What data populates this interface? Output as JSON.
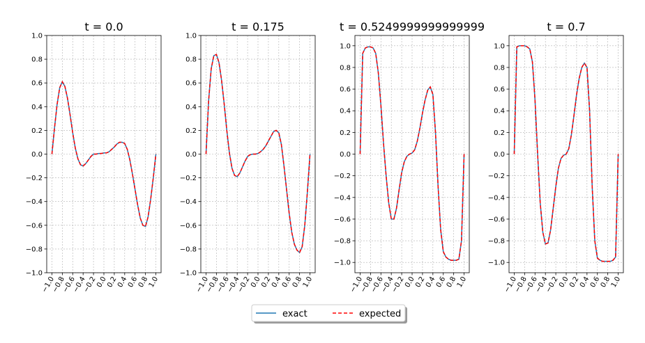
{
  "chart_data": [
    {
      "type": "line",
      "title": "t = 0.0",
      "x": [
        -1,
        -0.95,
        -0.9,
        -0.85,
        -0.8,
        -0.75,
        -0.7,
        -0.65,
        -0.6,
        -0.55,
        -0.5,
        -0.45,
        -0.4,
        -0.35,
        -0.3,
        -0.25,
        -0.2,
        -0.15,
        -0.1,
        -0.05,
        0,
        0.05,
        0.1,
        0.15,
        0.2,
        0.25,
        0.3,
        0.35,
        0.4,
        0.45,
        0.5,
        0.55,
        0.6,
        0.65,
        0.7,
        0.75,
        0.8,
        0.85,
        0.9,
        0.95,
        1
      ],
      "series": [
        {
          "name": "exact",
          "color": "#1f77b4",
          "dash": false,
          "values": [
            0,
            0.22,
            0.42,
            0.56,
            0.61,
            0.57,
            0.47,
            0.33,
            0.18,
            0.05,
            -0.04,
            -0.09,
            -0.1,
            -0.08,
            -0.05,
            -0.02,
            0,
            0,
            0.005,
            0.005,
            0.01,
            0.01,
            0.02,
            0.04,
            0.06,
            0.085,
            0.1,
            0.1,
            0.09,
            0.04,
            -0.05,
            -0.17,
            -0.3,
            -0.43,
            -0.54,
            -0.6,
            -0.61,
            -0.53,
            -0.38,
            -0.2,
            0
          ]
        },
        {
          "name": "expected",
          "color": "#ff0000",
          "dash": true,
          "values": [
            0,
            0.22,
            0.42,
            0.56,
            0.61,
            0.57,
            0.47,
            0.33,
            0.18,
            0.05,
            -0.04,
            -0.09,
            -0.1,
            -0.08,
            -0.05,
            -0.02,
            0,
            0,
            0.005,
            0.005,
            0.01,
            0.01,
            0.02,
            0.04,
            0.06,
            0.085,
            0.1,
            0.1,
            0.09,
            0.04,
            -0.05,
            -0.17,
            -0.3,
            -0.43,
            -0.54,
            -0.6,
            -0.61,
            -0.53,
            -0.38,
            -0.2,
            0
          ]
        }
      ],
      "xlim": [
        -1.1,
        1.1
      ],
      "ylim": [
        -1,
        1
      ],
      "xticks": [
        {
          "value": -1,
          "label": "−1.0"
        },
        {
          "value": -0.8,
          "label": "−0.8"
        },
        {
          "value": -0.6,
          "label": "−0.6"
        },
        {
          "value": -0.4,
          "label": "−0.4"
        },
        {
          "value": -0.2,
          "label": "−0.2"
        },
        {
          "value": 0,
          "label": "0.0"
        },
        {
          "value": 0.2,
          "label": "0.2"
        },
        {
          "value": 0.4,
          "label": "0.4"
        },
        {
          "value": 0.6,
          "label": "0.6"
        },
        {
          "value": 0.8,
          "label": "0.8"
        },
        {
          "value": 1,
          "label": "1.0"
        }
      ],
      "yticks": [
        {
          "value": -1,
          "label": "−1.0"
        },
        {
          "value": -0.8,
          "label": "−0.8"
        },
        {
          "value": -0.6,
          "label": "−0.6"
        },
        {
          "value": -0.4,
          "label": "−0.4"
        },
        {
          "value": -0.2,
          "label": "−0.2"
        },
        {
          "value": 0,
          "label": "0.0"
        },
        {
          "value": 0.2,
          "label": "0.2"
        },
        {
          "value": 0.4,
          "label": "0.4"
        },
        {
          "value": 0.6,
          "label": "0.6"
        },
        {
          "value": 0.8,
          "label": "0.8"
        },
        {
          "value": 1,
          "label": "1.0"
        }
      ],
      "grid": true
    },
    {
      "type": "line",
      "title": "t = 0.175",
      "x": [
        -1,
        -0.95,
        -0.9,
        -0.85,
        -0.8,
        -0.75,
        -0.7,
        -0.65,
        -0.6,
        -0.55,
        -0.5,
        -0.45,
        -0.4,
        -0.35,
        -0.3,
        -0.25,
        -0.2,
        -0.15,
        -0.1,
        -0.05,
        0,
        0.05,
        0.1,
        0.15,
        0.2,
        0.25,
        0.3,
        0.35,
        0.4,
        0.45,
        0.5,
        0.55,
        0.6,
        0.65,
        0.7,
        0.75,
        0.8,
        0.85,
        0.9,
        0.95,
        1
      ],
      "series": [
        {
          "name": "exact",
          "color": "#1f77b4",
          "dash": false,
          "values": [
            0,
            0.45,
            0.72,
            0.83,
            0.84,
            0.77,
            0.62,
            0.42,
            0.2,
            0.01,
            -0.12,
            -0.18,
            -0.19,
            -0.16,
            -0.11,
            -0.06,
            -0.02,
            -0.005,
            0,
            0,
            0.005,
            0.02,
            0.04,
            0.07,
            0.11,
            0.15,
            0.19,
            0.2,
            0.18,
            0.08,
            -0.1,
            -0.3,
            -0.5,
            -0.66,
            -0.76,
            -0.81,
            -0.83,
            -0.78,
            -0.6,
            -0.32,
            0
          ]
        },
        {
          "name": "expected",
          "color": "#ff0000",
          "dash": true,
          "values": [
            0,
            0.45,
            0.72,
            0.83,
            0.84,
            0.77,
            0.62,
            0.42,
            0.2,
            0.01,
            -0.12,
            -0.18,
            -0.19,
            -0.16,
            -0.11,
            -0.06,
            -0.02,
            -0.005,
            0,
            0,
            0.005,
            0.02,
            0.04,
            0.07,
            0.11,
            0.15,
            0.19,
            0.2,
            0.18,
            0.08,
            -0.1,
            -0.3,
            -0.5,
            -0.66,
            -0.76,
            -0.81,
            -0.83,
            -0.78,
            -0.6,
            -0.32,
            0
          ]
        }
      ],
      "xlim": [
        -1.1,
        1.1
      ],
      "ylim": [
        -1,
        1
      ],
      "xticks": [
        {
          "value": -1,
          "label": "−1.0"
        },
        {
          "value": -0.8,
          "label": "−0.8"
        },
        {
          "value": -0.6,
          "label": "−0.6"
        },
        {
          "value": -0.4,
          "label": "−0.4"
        },
        {
          "value": -0.2,
          "label": "−0.2"
        },
        {
          "value": 0,
          "label": "0.0"
        },
        {
          "value": 0.2,
          "label": "0.2"
        },
        {
          "value": 0.4,
          "label": "0.4"
        },
        {
          "value": 0.6,
          "label": "0.6"
        },
        {
          "value": 0.8,
          "label": "0.8"
        },
        {
          "value": 1,
          "label": "1.0"
        }
      ],
      "yticks": [
        {
          "value": -1,
          "label": "−1.0"
        },
        {
          "value": -0.8,
          "label": "−0.8"
        },
        {
          "value": -0.6,
          "label": "−0.6"
        },
        {
          "value": -0.4,
          "label": "−0.4"
        },
        {
          "value": -0.2,
          "label": "−0.2"
        },
        {
          "value": 0,
          "label": "0.0"
        },
        {
          "value": 0.2,
          "label": "0.2"
        },
        {
          "value": 0.4,
          "label": "0.4"
        },
        {
          "value": 0.6,
          "label": "0.6"
        },
        {
          "value": 0.8,
          "label": "0.8"
        },
        {
          "value": 1,
          "label": "1.0"
        }
      ],
      "grid": true
    },
    {
      "type": "line",
      "title": "t = 0.5249999999999999",
      "x": [
        -1,
        -0.95,
        -0.9,
        -0.85,
        -0.8,
        -0.75,
        -0.7,
        -0.65,
        -0.6,
        -0.55,
        -0.5,
        -0.45,
        -0.4,
        -0.35,
        -0.3,
        -0.25,
        -0.2,
        -0.15,
        -0.1,
        -0.05,
        0,
        0.05,
        0.1,
        0.15,
        0.2,
        0.25,
        0.3,
        0.35,
        0.4,
        0.45,
        0.5,
        0.55,
        0.6,
        0.65,
        0.7,
        0.75,
        0.8,
        0.85,
        0.9,
        0.95,
        1
      ],
      "series": [
        {
          "name": "exact",
          "color": "#1f77b4",
          "dash": false,
          "values": [
            0,
            0.93,
            0.98,
            0.99,
            0.99,
            0.98,
            0.93,
            0.75,
            0.45,
            0.1,
            -0.2,
            -0.45,
            -0.6,
            -0.6,
            -0.5,
            -0.33,
            -0.17,
            -0.07,
            -0.02,
            0,
            0.01,
            0.04,
            0.12,
            0.24,
            0.38,
            0.5,
            0.59,
            0.62,
            0.55,
            0.2,
            -0.3,
            -0.7,
            -0.9,
            -0.95,
            -0.97,
            -0.98,
            -0.98,
            -0.98,
            -0.97,
            -0.8,
            0
          ]
        },
        {
          "name": "expected",
          "color": "#ff0000",
          "dash": true,
          "values": [
            0,
            0.93,
            0.98,
            0.99,
            0.99,
            0.98,
            0.93,
            0.75,
            0.45,
            0.1,
            -0.2,
            -0.45,
            -0.6,
            -0.6,
            -0.5,
            -0.33,
            -0.17,
            -0.07,
            -0.02,
            0,
            0.01,
            0.04,
            0.12,
            0.24,
            0.38,
            0.5,
            0.59,
            0.62,
            0.55,
            0.2,
            -0.3,
            -0.7,
            -0.9,
            -0.95,
            -0.97,
            -0.98,
            -0.98,
            -0.98,
            -0.97,
            -0.8,
            0
          ]
        }
      ],
      "xlim": [
        -1.1,
        1.1
      ],
      "ylim": [
        -1.095,
        1.095
      ],
      "xticks": [
        {
          "value": -1,
          "label": "−1.0"
        },
        {
          "value": -0.8,
          "label": "−0.8"
        },
        {
          "value": -0.6,
          "label": "−0.6"
        },
        {
          "value": -0.4,
          "label": "−0.4"
        },
        {
          "value": -0.2,
          "label": "−0.2"
        },
        {
          "value": 0,
          "label": "0.0"
        },
        {
          "value": 0.2,
          "label": "0.2"
        },
        {
          "value": 0.4,
          "label": "0.4"
        },
        {
          "value": 0.6,
          "label": "0.6"
        },
        {
          "value": 0.8,
          "label": "0.8"
        },
        {
          "value": 1,
          "label": "1.0"
        }
      ],
      "yticks": [
        {
          "value": -1,
          "label": "−1.0"
        },
        {
          "value": -0.8,
          "label": "−0.8"
        },
        {
          "value": -0.6,
          "label": "−0.6"
        },
        {
          "value": -0.4,
          "label": "−0.4"
        },
        {
          "value": -0.2,
          "label": "−0.2"
        },
        {
          "value": 0,
          "label": "0.0"
        },
        {
          "value": 0.2,
          "label": "0.2"
        },
        {
          "value": 0.4,
          "label": "0.4"
        },
        {
          "value": 0.6,
          "label": "0.6"
        },
        {
          "value": 0.8,
          "label": "0.8"
        },
        {
          "value": 1,
          "label": "1.0"
        }
      ],
      "grid": true
    },
    {
      "type": "line",
      "title": "t = 0.7",
      "x": [
        -1,
        -0.95,
        -0.9,
        -0.85,
        -0.8,
        -0.75,
        -0.7,
        -0.65,
        -0.6,
        -0.55,
        -0.5,
        -0.45,
        -0.4,
        -0.35,
        -0.3,
        -0.25,
        -0.2,
        -0.15,
        -0.1,
        -0.05,
        0,
        0.05,
        0.1,
        0.15,
        0.2,
        0.25,
        0.3,
        0.35,
        0.4,
        0.45,
        0.5,
        0.55,
        0.6,
        0.65,
        0.7,
        0.75,
        0.8,
        0.85,
        0.9,
        0.95,
        1
      ],
      "series": [
        {
          "name": "exact",
          "color": "#1f77b4",
          "dash": false,
          "values": [
            0,
            0.99,
            1,
            1,
            1,
            0.99,
            0.97,
            0.85,
            0.5,
            0,
            -0.45,
            -0.72,
            -0.83,
            -0.82,
            -0.7,
            -0.5,
            -0.3,
            -0.13,
            -0.04,
            -0.01,
            0,
            0.05,
            0.18,
            0.36,
            0.55,
            0.7,
            0.8,
            0.84,
            0.8,
            0.4,
            -0.3,
            -0.8,
            -0.96,
            -0.98,
            -0.99,
            -0.99,
            -0.99,
            -0.99,
            -0.98,
            -0.95,
            0
          ]
        },
        {
          "name": "expected",
          "color": "#ff0000",
          "dash": true,
          "values": [
            0,
            0.99,
            1,
            1,
            1,
            0.99,
            0.97,
            0.85,
            0.5,
            0,
            -0.45,
            -0.72,
            -0.83,
            -0.82,
            -0.7,
            -0.5,
            -0.3,
            -0.13,
            -0.04,
            -0.01,
            0,
            0.05,
            0.18,
            0.36,
            0.55,
            0.7,
            0.8,
            0.84,
            0.8,
            0.4,
            -0.3,
            -0.8,
            -0.96,
            -0.98,
            -0.99,
            -0.99,
            -0.99,
            -0.99,
            -0.98,
            -0.95,
            0
          ]
        }
      ],
      "xlim": [
        -1.1,
        1.1
      ],
      "ylim": [
        -1.095,
        1.095
      ],
      "xticks": [
        {
          "value": -1,
          "label": "−1.0"
        },
        {
          "value": -0.8,
          "label": "−0.8"
        },
        {
          "value": -0.6,
          "label": "−0.6"
        },
        {
          "value": -0.4,
          "label": "−0.4"
        },
        {
          "value": -0.2,
          "label": "−0.2"
        },
        {
          "value": 0,
          "label": "0.0"
        },
        {
          "value": 0.2,
          "label": "0.2"
        },
        {
          "value": 0.4,
          "label": "0.4"
        },
        {
          "value": 0.6,
          "label": "0.6"
        },
        {
          "value": 0.8,
          "label": "0.8"
        },
        {
          "value": 1,
          "label": "1.0"
        }
      ],
      "yticks": [
        {
          "value": -1,
          "label": "−1.0"
        },
        {
          "value": -0.8,
          "label": "−0.8"
        },
        {
          "value": -0.6,
          "label": "−0.6"
        },
        {
          "value": -0.4,
          "label": "−0.4"
        },
        {
          "value": -0.2,
          "label": "−0.2"
        },
        {
          "value": 0,
          "label": "0.0"
        },
        {
          "value": 0.2,
          "label": "0.2"
        },
        {
          "value": 0.4,
          "label": "0.4"
        },
        {
          "value": 0.6,
          "label": "0.6"
        },
        {
          "value": 0.8,
          "label": "0.8"
        },
        {
          "value": 1,
          "label": "1.0"
        }
      ],
      "grid": true
    }
  ]
}
